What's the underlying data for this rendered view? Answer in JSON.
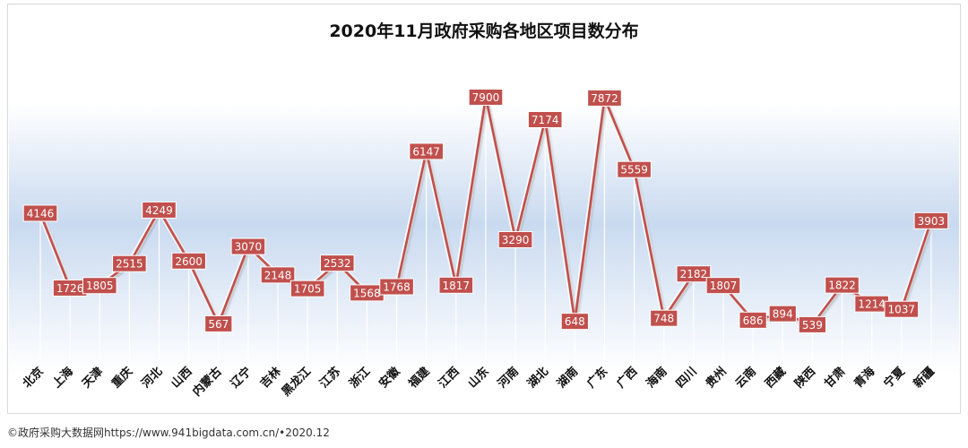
{
  "chart_data": {
    "type": "line",
    "title": "2020年11月政府采购各地区项目数分布",
    "categories": [
      "北京",
      "上海",
      "天津",
      "重庆",
      "河北",
      "山西",
      "内蒙古",
      "辽宁",
      "吉林",
      "黑龙江",
      "江苏",
      "浙江",
      "安徽",
      "福建",
      "江西",
      "山东",
      "河南",
      "湖北",
      "湖南",
      "广东",
      "广西",
      "海南",
      "四川",
      "贵州",
      "云南",
      "西藏",
      "陕西",
      "甘肃",
      "青海",
      "宁夏",
      "新疆"
    ],
    "series": [
      {
        "values": [
          4146,
          1726,
          1805,
          2515,
          4249,
          2600,
          567,
          3070,
          2148,
          1705,
          2532,
          1568,
          1768,
          6147,
          1817,
          7900,
          3290,
          7174,
          648,
          7872,
          5559,
          748,
          2182,
          1807,
          686,
          894,
          539,
          1822,
          1214,
          1037,
          3903
        ]
      }
    ],
    "value_labels": [
      "4146",
      "1726",
      "1805",
      "2515",
      "4249",
      "2600",
      "567",
      "3070",
      "2148",
      "1705",
      "2532",
      "1568",
      "1768",
      "6147",
      "1817",
      "7900",
      "3290",
      "7174",
      "648",
      "7872",
      "5559",
      "748",
      "2182",
      "1807",
      "686",
      "894",
      "539",
      "1822",
      "1214",
      "1037",
      "3903"
    ],
    "ylim": [
      0,
      8000
    ],
    "grid": false,
    "legend": "none",
    "xlabel": "",
    "ylabel": ""
  },
  "footer": "©政府采购大数据网https://www.941bigdata.com.cn/•2020.12",
  "colors": {
    "line": "#c0504d",
    "label_fill": "#c0504d",
    "label_text": "#ffffff",
    "band_top": "#ffffff",
    "band_mid": "#c9daf0",
    "title": "#111111"
  }
}
